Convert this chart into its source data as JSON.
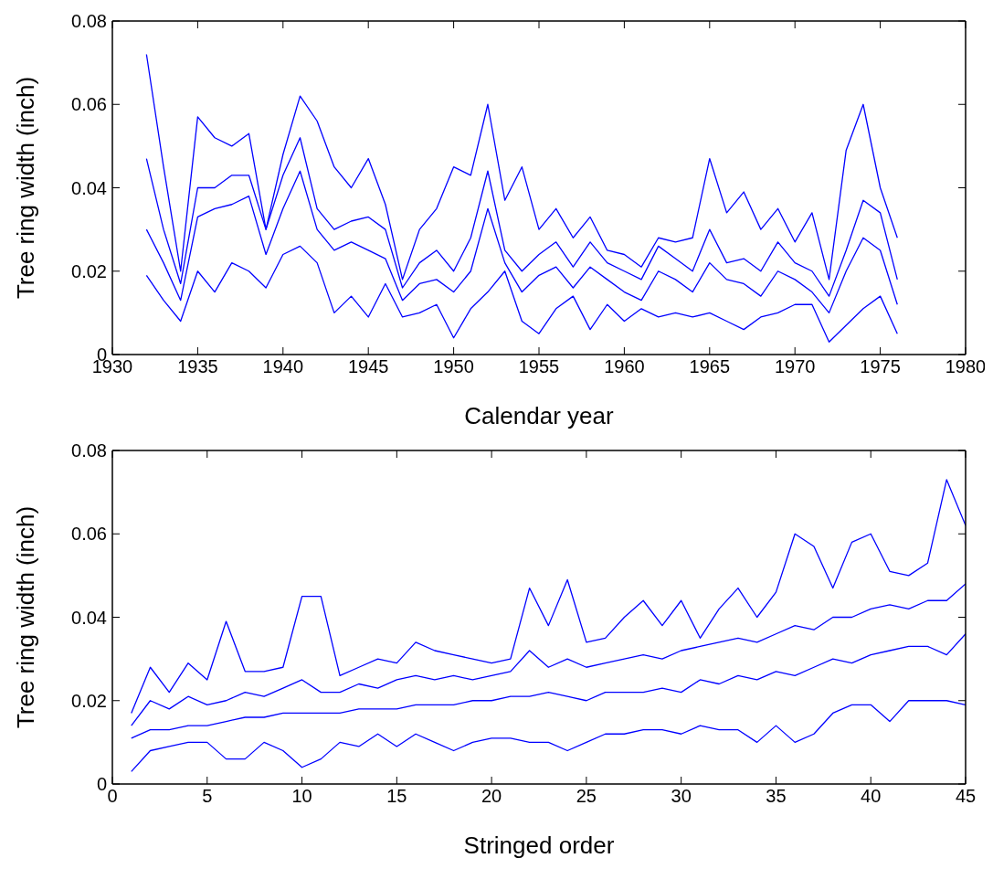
{
  "chart_data": [
    {
      "type": "line",
      "xlabel": "Calendar year",
      "ylabel": "Tree ring width (inch)",
      "xlim": [
        1930,
        1980
      ],
      "xticks": [
        1930,
        1935,
        1940,
        1945,
        1950,
        1955,
        1960,
        1965,
        1970,
        1975,
        1980
      ],
      "ylim": [
        0,
        0.08
      ],
      "yticks": [
        0,
        0.02,
        0.04,
        0.06,
        0.08
      ],
      "x": [
        1932,
        1933,
        1934,
        1935,
        1936,
        1937,
        1938,
        1939,
        1940,
        1941,
        1942,
        1943,
        1944,
        1945,
        1946,
        1947,
        1948,
        1949,
        1950,
        1951,
        1952,
        1953,
        1954,
        1955,
        1956,
        1957,
        1958,
        1959,
        1960,
        1961,
        1962,
        1963,
        1964,
        1965,
        1966,
        1967,
        1968,
        1969,
        1970,
        1971,
        1972,
        1973,
        1974,
        1975,
        1976
      ],
      "series": [
        {
          "color": "#0000ff",
          "values": [
            0.072,
            0.045,
            0.02,
            0.057,
            0.052,
            0.05,
            0.053,
            0.03,
            0.048,
            0.062,
            0.056,
            0.045,
            0.04,
            0.047,
            0.036,
            0.018,
            0.03,
            0.035,
            0.045,
            0.043,
            0.06,
            0.037,
            0.045,
            0.03,
            0.035,
            0.028,
            0.033,
            0.025,
            0.024,
            0.021,
            0.028,
            0.027,
            0.028,
            0.047,
            0.034,
            0.039,
            0.03,
            0.035,
            0.027,
            0.034,
            0.018,
            0.049,
            0.06,
            0.04,
            0.028
          ]
        },
        {
          "color": "#0000ff",
          "values": [
            0.047,
            0.03,
            0.017,
            0.04,
            0.04,
            0.043,
            0.043,
            0.03,
            0.043,
            0.052,
            0.035,
            0.03,
            0.032,
            0.033,
            0.03,
            0.016,
            0.022,
            0.025,
            0.02,
            0.028,
            0.044,
            0.025,
            0.02,
            0.024,
            0.027,
            0.021,
            0.027,
            0.022,
            0.02,
            0.018,
            0.026,
            0.023,
            0.02,
            0.03,
            0.022,
            0.023,
            0.02,
            0.027,
            0.022,
            0.02,
            0.014,
            0.025,
            0.037,
            0.034,
            0.018
          ]
        },
        {
          "color": "#0000ff",
          "values": [
            0.03,
            0.022,
            0.013,
            0.033,
            0.035,
            0.036,
            0.038,
            0.024,
            0.035,
            0.044,
            0.03,
            0.025,
            0.027,
            0.025,
            0.023,
            0.013,
            0.017,
            0.018,
            0.015,
            0.02,
            0.035,
            0.022,
            0.015,
            0.019,
            0.021,
            0.016,
            0.021,
            0.018,
            0.015,
            0.013,
            0.02,
            0.018,
            0.015,
            0.022,
            0.018,
            0.017,
            0.014,
            0.02,
            0.018,
            0.015,
            0.01,
            0.02,
            0.028,
            0.025,
            0.012
          ]
        },
        {
          "color": "#0000ff",
          "values": [
            0.019,
            0.013,
            0.008,
            0.02,
            0.015,
            0.022,
            0.02,
            0.016,
            0.024,
            0.026,
            0.022,
            0.01,
            0.014,
            0.009,
            0.017,
            0.009,
            0.01,
            0.012,
            0.004,
            0.011,
            0.015,
            0.02,
            0.008,
            0.005,
            0.011,
            0.014,
            0.006,
            0.012,
            0.008,
            0.011,
            0.009,
            0.01,
            0.009,
            0.01,
            0.008,
            0.006,
            0.009,
            0.01,
            0.012,
            0.012,
            0.003,
            0.007,
            0.011,
            0.014,
            0.005
          ]
        }
      ]
    },
    {
      "type": "line",
      "xlabel": "Stringed order",
      "ylabel": "Tree ring width (inch)",
      "xlim": [
        0,
        45
      ],
      "xticks": [
        0,
        5,
        10,
        15,
        20,
        25,
        30,
        35,
        40,
        45
      ],
      "ylim": [
        0,
        0.08
      ],
      "yticks": [
        0,
        0.02,
        0.04,
        0.06,
        0.08
      ],
      "x": [
        1,
        2,
        3,
        4,
        5,
        6,
        7,
        8,
        9,
        10,
        11,
        12,
        13,
        14,
        15,
        16,
        17,
        18,
        19,
        20,
        21,
        22,
        23,
        24,
        25,
        26,
        27,
        28,
        29,
        30,
        31,
        32,
        33,
        34,
        35,
        36,
        37,
        38,
        39,
        40,
        41,
        42,
        43,
        44,
        45
      ],
      "series": [
        {
          "color": "#0000ff",
          "values": [
            0.017,
            0.028,
            0.022,
            0.029,
            0.025,
            0.039,
            0.027,
            0.027,
            0.028,
            0.045,
            0.045,
            0.026,
            0.028,
            0.03,
            0.029,
            0.034,
            0.032,
            0.031,
            0.03,
            0.029,
            0.03,
            0.047,
            0.038,
            0.049,
            0.034,
            0.035,
            0.04,
            0.044,
            0.038,
            0.044,
            0.035,
            0.042,
            0.047,
            0.04,
            0.046,
            0.06,
            0.057,
            0.047,
            0.058,
            0.06,
            0.051,
            0.05,
            0.053,
            0.073,
            0.062
          ]
        },
        {
          "color": "#0000ff",
          "values": [
            0.014,
            0.02,
            0.018,
            0.021,
            0.019,
            0.02,
            0.022,
            0.021,
            0.023,
            0.025,
            0.022,
            0.022,
            0.024,
            0.023,
            0.025,
            0.026,
            0.025,
            0.026,
            0.025,
            0.026,
            0.027,
            0.032,
            0.028,
            0.03,
            0.028,
            0.029,
            0.03,
            0.031,
            0.03,
            0.032,
            0.033,
            0.034,
            0.035,
            0.034,
            0.036,
            0.038,
            0.037,
            0.04,
            0.04,
            0.042,
            0.043,
            0.042,
            0.044,
            0.044,
            0.048
          ]
        },
        {
          "color": "#0000ff",
          "values": [
            0.011,
            0.013,
            0.013,
            0.014,
            0.014,
            0.015,
            0.016,
            0.016,
            0.017,
            0.017,
            0.017,
            0.017,
            0.018,
            0.018,
            0.018,
            0.019,
            0.019,
            0.019,
            0.02,
            0.02,
            0.021,
            0.021,
            0.022,
            0.021,
            0.02,
            0.022,
            0.022,
            0.022,
            0.023,
            0.022,
            0.025,
            0.024,
            0.026,
            0.025,
            0.027,
            0.026,
            0.028,
            0.03,
            0.029,
            0.031,
            0.032,
            0.033,
            0.033,
            0.031,
            0.036
          ]
        },
        {
          "color": "#0000ff",
          "values": [
            0.003,
            0.008,
            0.009,
            0.01,
            0.01,
            0.006,
            0.006,
            0.01,
            0.008,
            0.004,
            0.006,
            0.01,
            0.009,
            0.012,
            0.009,
            0.012,
            0.01,
            0.008,
            0.01,
            0.011,
            0.011,
            0.01,
            0.01,
            0.008,
            0.01,
            0.012,
            0.012,
            0.013,
            0.013,
            0.012,
            0.014,
            0.013,
            0.013,
            0.01,
            0.014,
            0.01,
            0.012,
            0.017,
            0.019,
            0.019,
            0.015,
            0.02,
            0.02,
            0.02,
            0.019
          ]
        }
      ]
    }
  ]
}
